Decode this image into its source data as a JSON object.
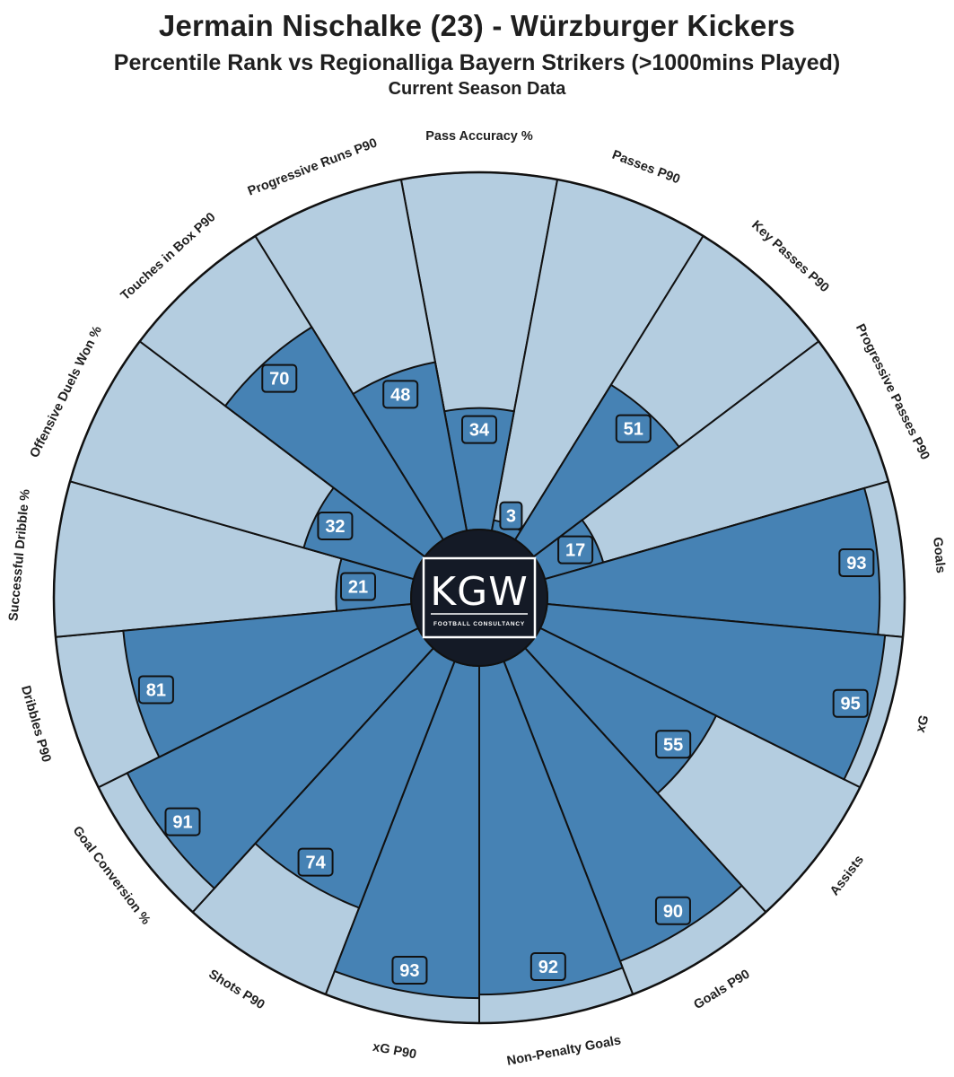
{
  "header": {
    "title": "Jermain Nischalke (23) - Würzburger Kickers",
    "subtitle": "Percentile Rank vs Regionalliga Bayern Strikers (>1000mins Played)",
    "caption": "Current Season Data"
  },
  "logo": {
    "text": "KGW",
    "subtext": "FOOTBALL CONSULTANCY"
  },
  "colors": {
    "filled": "#4682b4",
    "background_slice": "#b4cde0",
    "value_box": "#4682b4",
    "outline": "#111111",
    "logo_bg": "#141a26"
  },
  "chart_data": {
    "type": "pizza",
    "range": [
      0,
      100
    ],
    "metrics": [
      {
        "label": "Pass Accuracy %",
        "value": 34
      },
      {
        "label": "Passes P90",
        "value": 3
      },
      {
        "label": "Key Passes P90",
        "value": 51
      },
      {
        "label": "Progressive Passes P90",
        "value": 17
      },
      {
        "label": "Goals",
        "value": 93
      },
      {
        "label": "xG",
        "value": 95
      },
      {
        "label": "Assists",
        "value": 55
      },
      {
        "label": "Goals P90",
        "value": 90
      },
      {
        "label": "Non-Penalty Goals",
        "value": 92
      },
      {
        "label": "xG P90",
        "value": 93
      },
      {
        "label": "Shots P90",
        "value": 74
      },
      {
        "label": "Goal Conversion %",
        "value": 91
      },
      {
        "label": "Dribbles P90",
        "value": 81
      },
      {
        "label": "Successful Dribble %",
        "value": 21
      },
      {
        "label": "Offensive Duels Won %",
        "value": 32
      },
      {
        "label": "Touches in Box P90",
        "value": 70
      },
      {
        "label": "Progressive Runs P90",
        "value": 48
      }
    ]
  }
}
